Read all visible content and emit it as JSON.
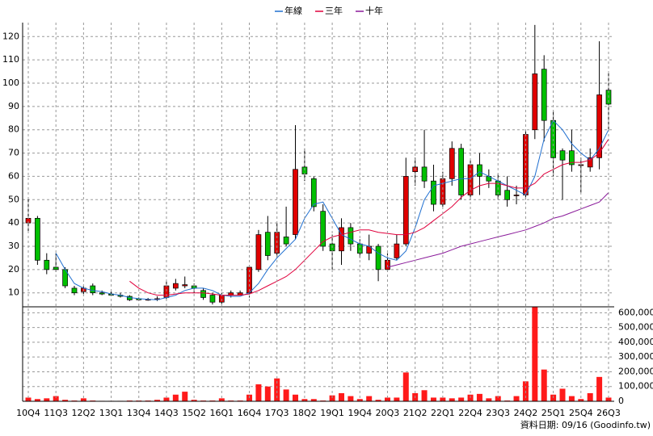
{
  "chart_data": [
    {
      "type": "candlestick",
      "legend": "top",
      "up_color": "#e00000",
      "down_color": "#00c000",
      "open": [
        40,
        42,
        24,
        21,
        20,
        12,
        10.5,
        13,
        10,
        9.5,
        9,
        8.5,
        7.5,
        7,
        7.3,
        8,
        12,
        13,
        13,
        11,
        9,
        6,
        9,
        9,
        10,
        20,
        36,
        27,
        34,
        35,
        64,
        59,
        45,
        31,
        28,
        38,
        31,
        27,
        30,
        20,
        25,
        31,
        62,
        64,
        58,
        48,
        59,
        72,
        52,
        65,
        60,
        58,
        54,
        52,
        52,
        80,
        106,
        84,
        71,
        71,
        65,
        64,
        68,
        97
      ],
      "high": [
        51,
        43,
        27,
        27,
        21,
        13,
        13,
        14,
        11,
        10.5,
        10,
        9,
        8,
        7.8,
        8.5,
        15,
        16,
        17,
        14,
        12,
        10,
        10,
        11,
        11,
        22,
        37,
        43,
        40,
        47,
        82,
        72,
        60,
        48,
        35,
        42,
        40,
        33,
        35,
        31,
        27,
        35,
        68,
        68,
        80,
        65,
        62,
        75,
        74,
        67,
        70,
        63,
        61,
        60,
        56,
        80,
        125,
        112,
        88,
        72,
        80,
        68,
        72,
        118,
        105
      ],
      "low": [
        36,
        22,
        18,
        19,
        12,
        9,
        9.5,
        9,
        9,
        8.5,
        8,
        6.5,
        6.5,
        6.6,
        6.5,
        7,
        11,
        12,
        10,
        7,
        5,
        5,
        8,
        9,
        8,
        19,
        24,
        25,
        30,
        33,
        58,
        45,
        28,
        20,
        22,
        28,
        25,
        24,
        15,
        19,
        24,
        30,
        56,
        55,
        45,
        47,
        56,
        50,
        50,
        52,
        55,
        50,
        47,
        48,
        50,
        76,
        75,
        60,
        50,
        62,
        53,
        62,
        63,
        80
      ],
      "close": [
        42,
        24,
        20,
        20,
        13,
        10,
        12,
        10,
        9.5,
        9,
        8.5,
        7,
        7,
        7.2,
        7.5,
        13,
        14,
        13.5,
        12,
        8,
        6,
        9,
        10,
        10,
        21,
        35,
        26,
        36,
        31,
        63,
        61,
        47,
        30,
        28,
        38,
        31,
        27,
        30,
        20,
        24,
        31,
        60,
        64,
        58,
        48,
        59,
        72,
        52,
        65,
        60,
        58,
        52,
        50,
        52,
        78,
        104,
        84,
        68,
        67,
        65,
        65,
        68,
        95,
        91
      ],
      "series": [
        {
          "name": "年線",
          "color": "#1f6fd0",
          "values": [
            null,
            null,
            null,
            27,
            20,
            14,
            12,
            11,
            10.5,
            9.5,
            9,
            8,
            7.5,
            7.2,
            7,
            8,
            9,
            11,
            12,
            12,
            11,
            9,
            8.5,
            8.5,
            10,
            14,
            20,
            25,
            29,
            33,
            42,
            48,
            49,
            42,
            35,
            33,
            31,
            30,
            27,
            25,
            24,
            28,
            38,
            50,
            56,
            57,
            58,
            59,
            59,
            62,
            60,
            58,
            56,
            54,
            52,
            60,
            76,
            84,
            80,
            74,
            70,
            67,
            72,
            80
          ]
        },
        {
          "name": "三年",
          "color": "#e0003c",
          "values": [
            null,
            null,
            null,
            null,
            null,
            null,
            null,
            null,
            null,
            null,
            null,
            15,
            12,
            10,
            9,
            9,
            9.5,
            10,
            10,
            10,
            9.5,
            9,
            9,
            9,
            9.5,
            11,
            13,
            15,
            17,
            20,
            24,
            28,
            32,
            34,
            35,
            36,
            37,
            37,
            36,
            35.5,
            35,
            35,
            36,
            38,
            41,
            44,
            47,
            51,
            54,
            56,
            57,
            57,
            56,
            55,
            55,
            57,
            61,
            63,
            65,
            66,
            66,
            67,
            70,
            76
          ]
        },
        {
          "name": "十年",
          "color": "#8a1a9a",
          "values": [
            null,
            null,
            null,
            null,
            null,
            null,
            null,
            null,
            null,
            null,
            null,
            null,
            null,
            null,
            null,
            null,
            null,
            null,
            null,
            null,
            null,
            null,
            null,
            null,
            null,
            null,
            null,
            null,
            null,
            null,
            null,
            null,
            null,
            null,
            null,
            null,
            null,
            null,
            null,
            21,
            22,
            23,
            24,
            25,
            26,
            27,
            28.5,
            30,
            31,
            32,
            33,
            34,
            35,
            36,
            37,
            38.5,
            40,
            42,
            43,
            44.5,
            46,
            47.5,
            49,
            53
          ]
        }
      ],
      "ylim": [
        4,
        126
      ],
      "yticks": [
        10,
        20,
        30,
        40,
        50,
        60,
        70,
        80,
        90,
        100,
        110,
        120
      ],
      "grid": true
    },
    {
      "type": "bar",
      "color": "#ff1a1a",
      "categories": [
        "10Q4",
        null,
        null,
        "11Q3",
        null,
        null,
        "12Q2",
        null,
        null,
        "13Q1",
        null,
        null,
        "13Q4",
        null,
        null,
        "14Q3",
        null,
        null,
        "15Q2",
        null,
        null,
        "16Q1",
        null,
        null,
        "16Q4",
        null,
        null,
        "17Q3",
        null,
        null,
        "18Q2",
        null,
        null,
        "19Q1",
        null,
        null,
        "19Q4",
        null,
        null,
        "20Q3",
        null,
        null,
        "21Q2",
        null,
        null,
        "22Q1",
        null,
        null,
        "22Q4",
        null,
        null,
        "23Q3",
        null,
        null,
        "24Q2",
        null,
        null,
        "25Q1",
        null,
        null,
        "25Q4",
        null,
        null,
        "26Q3"
      ],
      "values": [
        25000,
        15000,
        20000,
        35000,
        10000,
        5000,
        20000,
        5000,
        3000,
        3000,
        3000,
        5000,
        5000,
        5000,
        10000,
        25000,
        45000,
        65000,
        10000,
        5000,
        5000,
        20000,
        5000,
        5000,
        45000,
        115000,
        100000,
        155000,
        80000,
        45000,
        15000,
        15000,
        5000,
        40000,
        55000,
        35000,
        15000,
        35000,
        10000,
        25000,
        25000,
        195000,
        55000,
        75000,
        25000,
        25000,
        20000,
        25000,
        45000,
        50000,
        20000,
        35000,
        5000,
        35000,
        135000,
        640000,
        215000,
        45000,
        85000,
        35000,
        15000,
        55000,
        165000,
        25000
      ],
      "ylim": [
        0,
        640000
      ],
      "yticks": [
        0,
        {
          "value": 100000,
          "label": "100,000"
        },
        {
          "value": 200000,
          "label": "200,000"
        },
        {
          "value": 300000,
          "label": "300,000"
        },
        {
          "value": 400000,
          "label": "400,000"
        },
        {
          "value": 500000,
          "label": "500,000"
        },
        {
          "value": 600000,
          "label": "600,000"
        }
      ],
      "grid": true
    }
  ],
  "footer": "資料日期: 09/16  (Goodinfo.tw)"
}
